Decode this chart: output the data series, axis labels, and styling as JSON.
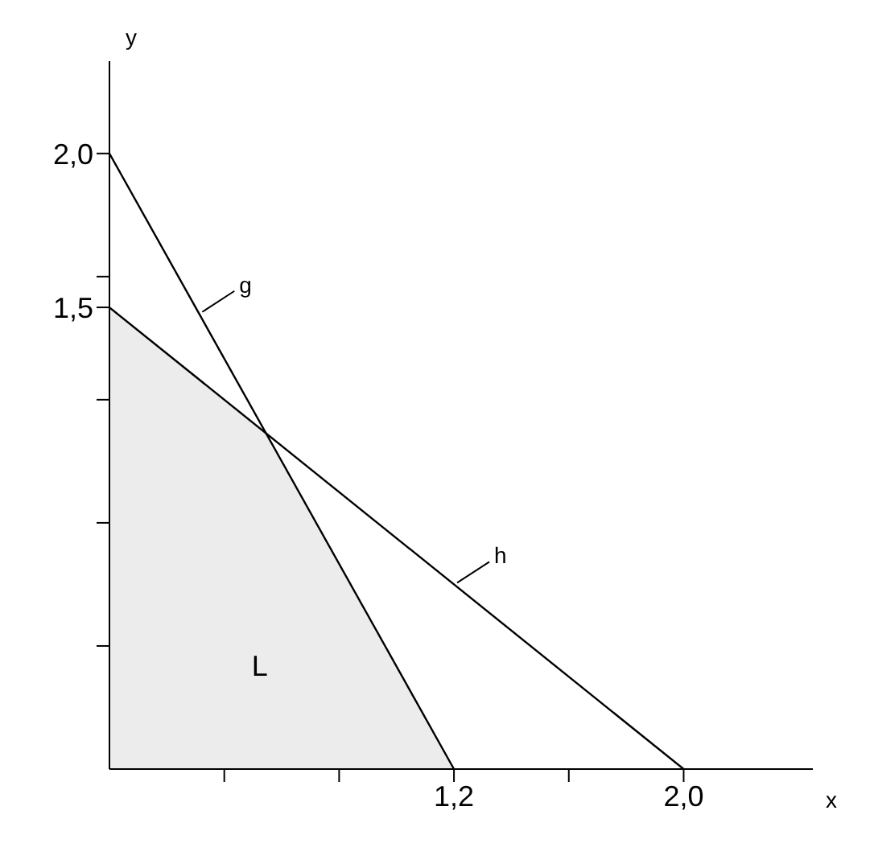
{
  "chart_data": {
    "type": "line",
    "xlabel": "x",
    "ylabel": "y",
    "xlim": [
      0,
      2.45
    ],
    "ylim": [
      0,
      2.3
    ],
    "xticks": [
      {
        "value": 0.4,
        "label": null
      },
      {
        "value": 0.8,
        "label": null
      },
      {
        "value": 1.2,
        "label": "1,2"
      },
      {
        "value": 1.6,
        "label": null
      },
      {
        "value": 2,
        "label": "2,0"
      }
    ],
    "yticks": [
      {
        "value": 0.4,
        "label": null
      },
      {
        "value": 0.8,
        "label": null
      },
      {
        "value": 1.2,
        "label": null
      },
      {
        "value": 1.5,
        "label": "1,5"
      },
      {
        "value": 1.6,
        "label": null
      },
      {
        "value": 2,
        "label": "2,0"
      }
    ],
    "grid": false,
    "marker": "none",
    "line_style": "solid",
    "series": [
      {
        "name": "L",
        "type": "area",
        "color": "#ececec",
        "x": [
          0,
          0.545,
          1.2
        ],
        "values": [
          1.5,
          1.091,
          0
        ]
      },
      {
        "name": "g",
        "color": "#000000",
        "x": [
          0,
          1.2
        ],
        "values": [
          2,
          0
        ]
      },
      {
        "name": "h",
        "color": "#000000",
        "x": [
          0,
          2
        ],
        "values": [
          1.5,
          0
        ]
      }
    ]
  }
}
